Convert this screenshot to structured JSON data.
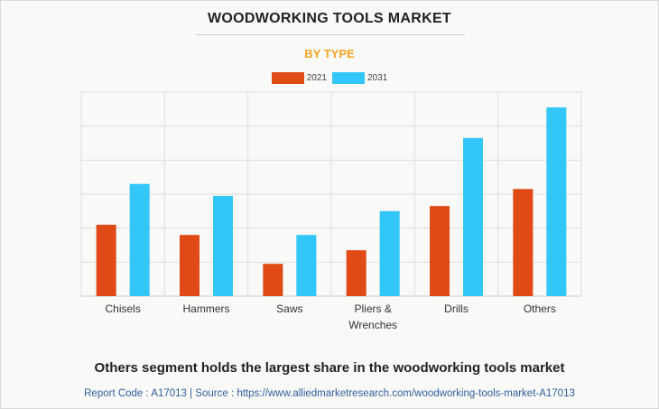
{
  "header": {
    "title": "WOODWORKING TOOLS MARKET",
    "subtitle": "BY TYPE"
  },
  "footer": {
    "headline": "Others segment holds the largest share in the woodworking tools market",
    "source": "Report Code : A17013  |  Source : https://www.alliedmarketresearch.com/woodworking-tools-market-A17013"
  },
  "colors": {
    "series_2021": "#e04a16",
    "series_2031": "#33c6f8",
    "subtitle": "#f5a623",
    "grid": "#dddddd"
  },
  "chart_data": {
    "type": "bar",
    "title": "WOODWORKING TOOLS MARKET",
    "subtitle": "BY TYPE",
    "categories": [
      "Chisels",
      "Hammers",
      "Saws",
      "Pliers & Wrenches",
      "Drills",
      "Others"
    ],
    "category_lines": [
      [
        "Chisels"
      ],
      [
        "Hammers"
      ],
      [
        "Saws"
      ],
      [
        "Pliers &",
        "Wrenches"
      ],
      [
        "Drills"
      ],
      [
        "Others"
      ]
    ],
    "series": [
      {
        "name": "2021",
        "values": [
          2.1,
          1.8,
          0.95,
          1.35,
          2.65,
          3.15
        ]
      },
      {
        "name": "2031",
        "values": [
          3.3,
          2.95,
          1.8,
          2.5,
          4.65,
          5.55
        ]
      }
    ],
    "ylim": [
      0,
      6
    ],
    "yticks_shown": false,
    "grid": true,
    "legend_position": "top-center",
    "xlabel": "",
    "ylabel": ""
  }
}
